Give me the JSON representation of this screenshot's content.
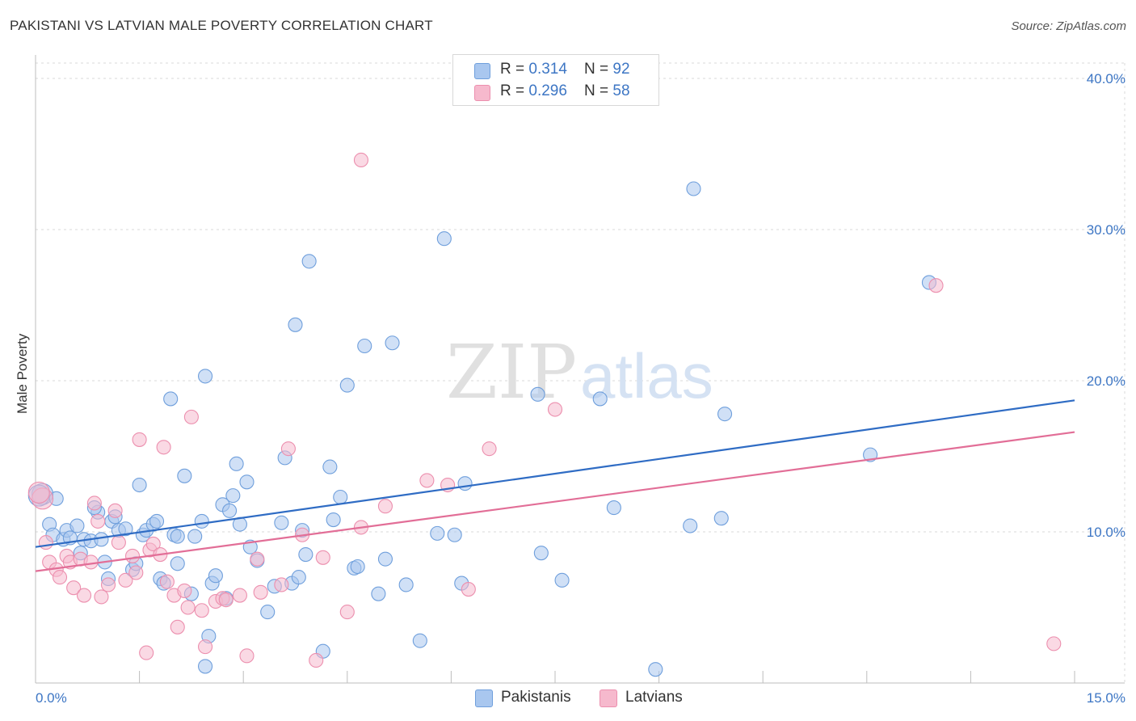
{
  "title": "PAKISTANI VS LATVIAN MALE POVERTY CORRELATION CHART",
  "source": "Source: ZipAtlas.com",
  "watermark": {
    "zip": "ZIP",
    "atlas": "atlas"
  },
  "legend_top": {
    "rows": [
      {
        "r_label": "R = ",
        "r_value": "0.314",
        "n_label": "N = ",
        "n_value": "92",
        "color": "#a9c7ef"
      },
      {
        "r_label": "R = ",
        "r_value": "0.296",
        "n_label": "N = ",
        "n_value": "58",
        "color": "#f6b9cd"
      }
    ]
  },
  "legend_bottom": [
    {
      "label": "Pakistanis",
      "color": "#a9c7ef"
    },
    {
      "label": "Latvians",
      "color": "#f6b9cd"
    }
  ],
  "chart_data": {
    "type": "scatter",
    "ylabel": "Male Poverty",
    "xlabel": "",
    "xlim": [
      0,
      15
    ],
    "ylim": [
      0,
      40
    ],
    "x_tick_labels": [
      "0.0%",
      "15.0%"
    ],
    "y_ticks": [
      10,
      20,
      30,
      40
    ],
    "y_tick_labels": [
      "10.0%",
      "20.0%",
      "30.0%",
      "40.0%"
    ],
    "grid": true,
    "series": [
      {
        "name": "Pakistanis",
        "color": "#6f9fdc",
        "fill": "#a9c7ef",
        "trend": {
          "x": [
            0,
            15
          ],
          "y": [
            9.0,
            18.7
          ],
          "color": "#2f6cc4"
        },
        "points": [
          [
            0.1,
            12.5
          ],
          [
            0.2,
            10.5
          ],
          [
            0.3,
            12.2
          ],
          [
            0.25,
            9.8
          ],
          [
            0.4,
            9.5
          ],
          [
            0.45,
            10.1
          ],
          [
            0.5,
            9.6
          ],
          [
            0.6,
            10.4
          ],
          [
            0.65,
            8.6
          ],
          [
            0.7,
            9.5
          ],
          [
            0.8,
            9.4
          ],
          [
            0.9,
            11.3
          ],
          [
            0.95,
            9.5
          ],
          [
            1.0,
            8.0
          ],
          [
            1.1,
            10.7
          ],
          [
            1.15,
            11.0
          ],
          [
            1.2,
            10.1
          ],
          [
            1.05,
            6.9
          ],
          [
            1.4,
            7.5
          ],
          [
            1.45,
            7.9
          ],
          [
            1.5,
            13.1
          ],
          [
            1.55,
            9.8
          ],
          [
            1.6,
            10.1
          ],
          [
            1.7,
            10.5
          ],
          [
            1.75,
            10.7
          ],
          [
            1.8,
            6.9
          ],
          [
            1.85,
            6.6
          ],
          [
            1.95,
            18.8
          ],
          [
            2.0,
            9.8
          ],
          [
            2.05,
            7.9
          ],
          [
            2.15,
            13.7
          ],
          [
            2.25,
            5.9
          ],
          [
            2.3,
            9.7
          ],
          [
            2.4,
            10.7
          ],
          [
            2.45,
            20.3
          ],
          [
            2.5,
            3.1
          ],
          [
            2.55,
            6.6
          ],
          [
            2.6,
            7.1
          ],
          [
            2.7,
            11.8
          ],
          [
            2.75,
            5.6
          ],
          [
            2.8,
            11.4
          ],
          [
            2.85,
            12.4
          ],
          [
            2.9,
            14.5
          ],
          [
            2.95,
            10.5
          ],
          [
            3.05,
            13.3
          ],
          [
            3.1,
            9.0
          ],
          [
            3.2,
            8.1
          ],
          [
            3.35,
            4.7
          ],
          [
            3.45,
            6.4
          ],
          [
            3.55,
            10.6
          ],
          [
            3.6,
            14.9
          ],
          [
            3.7,
            6.6
          ],
          [
            3.75,
            23.7
          ],
          [
            3.8,
            7.0
          ],
          [
            3.85,
            10.1
          ],
          [
            3.9,
            8.5
          ],
          [
            3.95,
            27.9
          ],
          [
            4.15,
            2.1
          ],
          [
            4.25,
            14.3
          ],
          [
            4.3,
            10.8
          ],
          [
            4.4,
            12.3
          ],
          [
            4.5,
            19.7
          ],
          [
            4.6,
            7.6
          ],
          [
            4.65,
            7.7
          ],
          [
            4.75,
            22.3
          ],
          [
            4.95,
            5.9
          ],
          [
            5.05,
            8.2
          ],
          [
            5.15,
            22.5
          ],
          [
            5.35,
            6.5
          ],
          [
            5.55,
            2.8
          ],
          [
            5.8,
            9.9
          ],
          [
            5.9,
            29.4
          ],
          [
            6.05,
            9.8
          ],
          [
            6.15,
            6.6
          ],
          [
            6.2,
            13.2
          ],
          [
            7.25,
            19.1
          ],
          [
            7.3,
            8.6
          ],
          [
            7.6,
            6.8
          ],
          [
            8.15,
            18.8
          ],
          [
            8.35,
            11.6
          ],
          [
            8.95,
            0.9
          ],
          [
            9.45,
            10.4
          ],
          [
            9.5,
            32.7
          ],
          [
            9.9,
            10.9
          ],
          [
            9.95,
            17.8
          ],
          [
            12.05,
            15.1
          ],
          [
            12.9,
            26.5
          ],
          [
            0.05,
            12.4
          ],
          [
            2.45,
            1.1
          ],
          [
            1.3,
            10.2
          ],
          [
            0.85,
            11.6
          ],
          [
            2.05,
            9.7
          ]
        ]
      },
      {
        "name": "Latvians",
        "color": "#ec8fae",
        "fill": "#f6b9cd",
        "trend": {
          "x": [
            0,
            15
          ],
          "y": [
            7.4,
            16.6
          ],
          "color": "#e26e97"
        },
        "points": [
          [
            0.1,
            12.2
          ],
          [
            0.15,
            9.3
          ],
          [
            0.2,
            8.0
          ],
          [
            0.3,
            7.5
          ],
          [
            0.35,
            7.0
          ],
          [
            0.45,
            8.4
          ],
          [
            0.5,
            8.0
          ],
          [
            0.55,
            6.3
          ],
          [
            0.65,
            8.2
          ],
          [
            0.7,
            5.8
          ],
          [
            0.8,
            8.0
          ],
          [
            0.85,
            11.9
          ],
          [
            0.9,
            10.7
          ],
          [
            0.95,
            5.7
          ],
          [
            1.05,
            6.5
          ],
          [
            1.15,
            11.4
          ],
          [
            1.2,
            9.3
          ],
          [
            1.3,
            6.8
          ],
          [
            1.4,
            8.4
          ],
          [
            1.45,
            7.3
          ],
          [
            1.5,
            16.1
          ],
          [
            1.6,
            2.0
          ],
          [
            1.65,
            8.8
          ],
          [
            1.7,
            9.2
          ],
          [
            1.8,
            8.5
          ],
          [
            1.85,
            15.6
          ],
          [
            1.9,
            6.7
          ],
          [
            2.0,
            5.8
          ],
          [
            2.05,
            3.7
          ],
          [
            2.15,
            6.1
          ],
          [
            2.2,
            5.0
          ],
          [
            2.25,
            17.6
          ],
          [
            2.4,
            4.8
          ],
          [
            2.45,
            2.4
          ],
          [
            2.6,
            5.4
          ],
          [
            2.7,
            5.6
          ],
          [
            2.75,
            5.5
          ],
          [
            2.95,
            5.8
          ],
          [
            3.05,
            1.8
          ],
          [
            3.2,
            8.2
          ],
          [
            3.25,
            6.0
          ],
          [
            3.55,
            6.5
          ],
          [
            3.65,
            15.5
          ],
          [
            3.85,
            9.8
          ],
          [
            4.05,
            1.5
          ],
          [
            4.15,
            8.3
          ],
          [
            4.5,
            4.7
          ],
          [
            4.7,
            10.3
          ],
          [
            4.7,
            34.6
          ],
          [
            5.05,
            11.7
          ],
          [
            5.65,
            13.4
          ],
          [
            5.95,
            13.1
          ],
          [
            6.25,
            6.2
          ],
          [
            6.55,
            15.5
          ],
          [
            7.5,
            18.1
          ],
          [
            13.0,
            26.3
          ],
          [
            14.7,
            2.6
          ],
          [
            0.05,
            12.6
          ]
        ]
      }
    ]
  }
}
